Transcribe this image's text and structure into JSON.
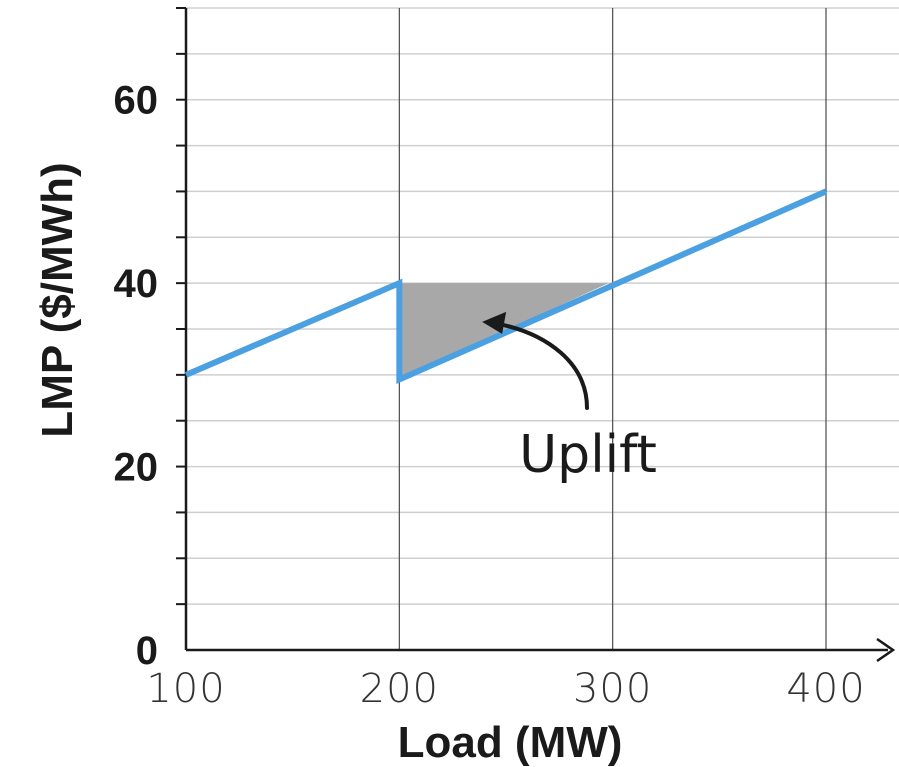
{
  "chart_data": {
    "type": "line",
    "title": "",
    "xlabel": "Load (MW)",
    "ylabel": "LMP ($/MWh)",
    "xlim": [
      100,
      400
    ],
    "ylim": [
      0,
      70
    ],
    "x_ticks": [
      100,
      200,
      300,
      400
    ],
    "y_ticks": [
      0,
      20,
      40,
      60
    ],
    "grid": true,
    "series": [
      {
        "color": "#4aa0e0",
        "x": [
          100,
          200,
          200,
          400
        ],
        "y": [
          30,
          40,
          29.5,
          50
        ]
      }
    ],
    "shaded_region": {
      "color": "#a8a8a8",
      "x": [
        200,
        200,
        298
      ],
      "y": [
        40,
        29.5,
        40
      ]
    },
    "annotations": [
      {
        "text": "Uplift",
        "x": 282,
        "y": 21.5,
        "arrow_to": [
          236,
          36
        ]
      }
    ]
  }
}
